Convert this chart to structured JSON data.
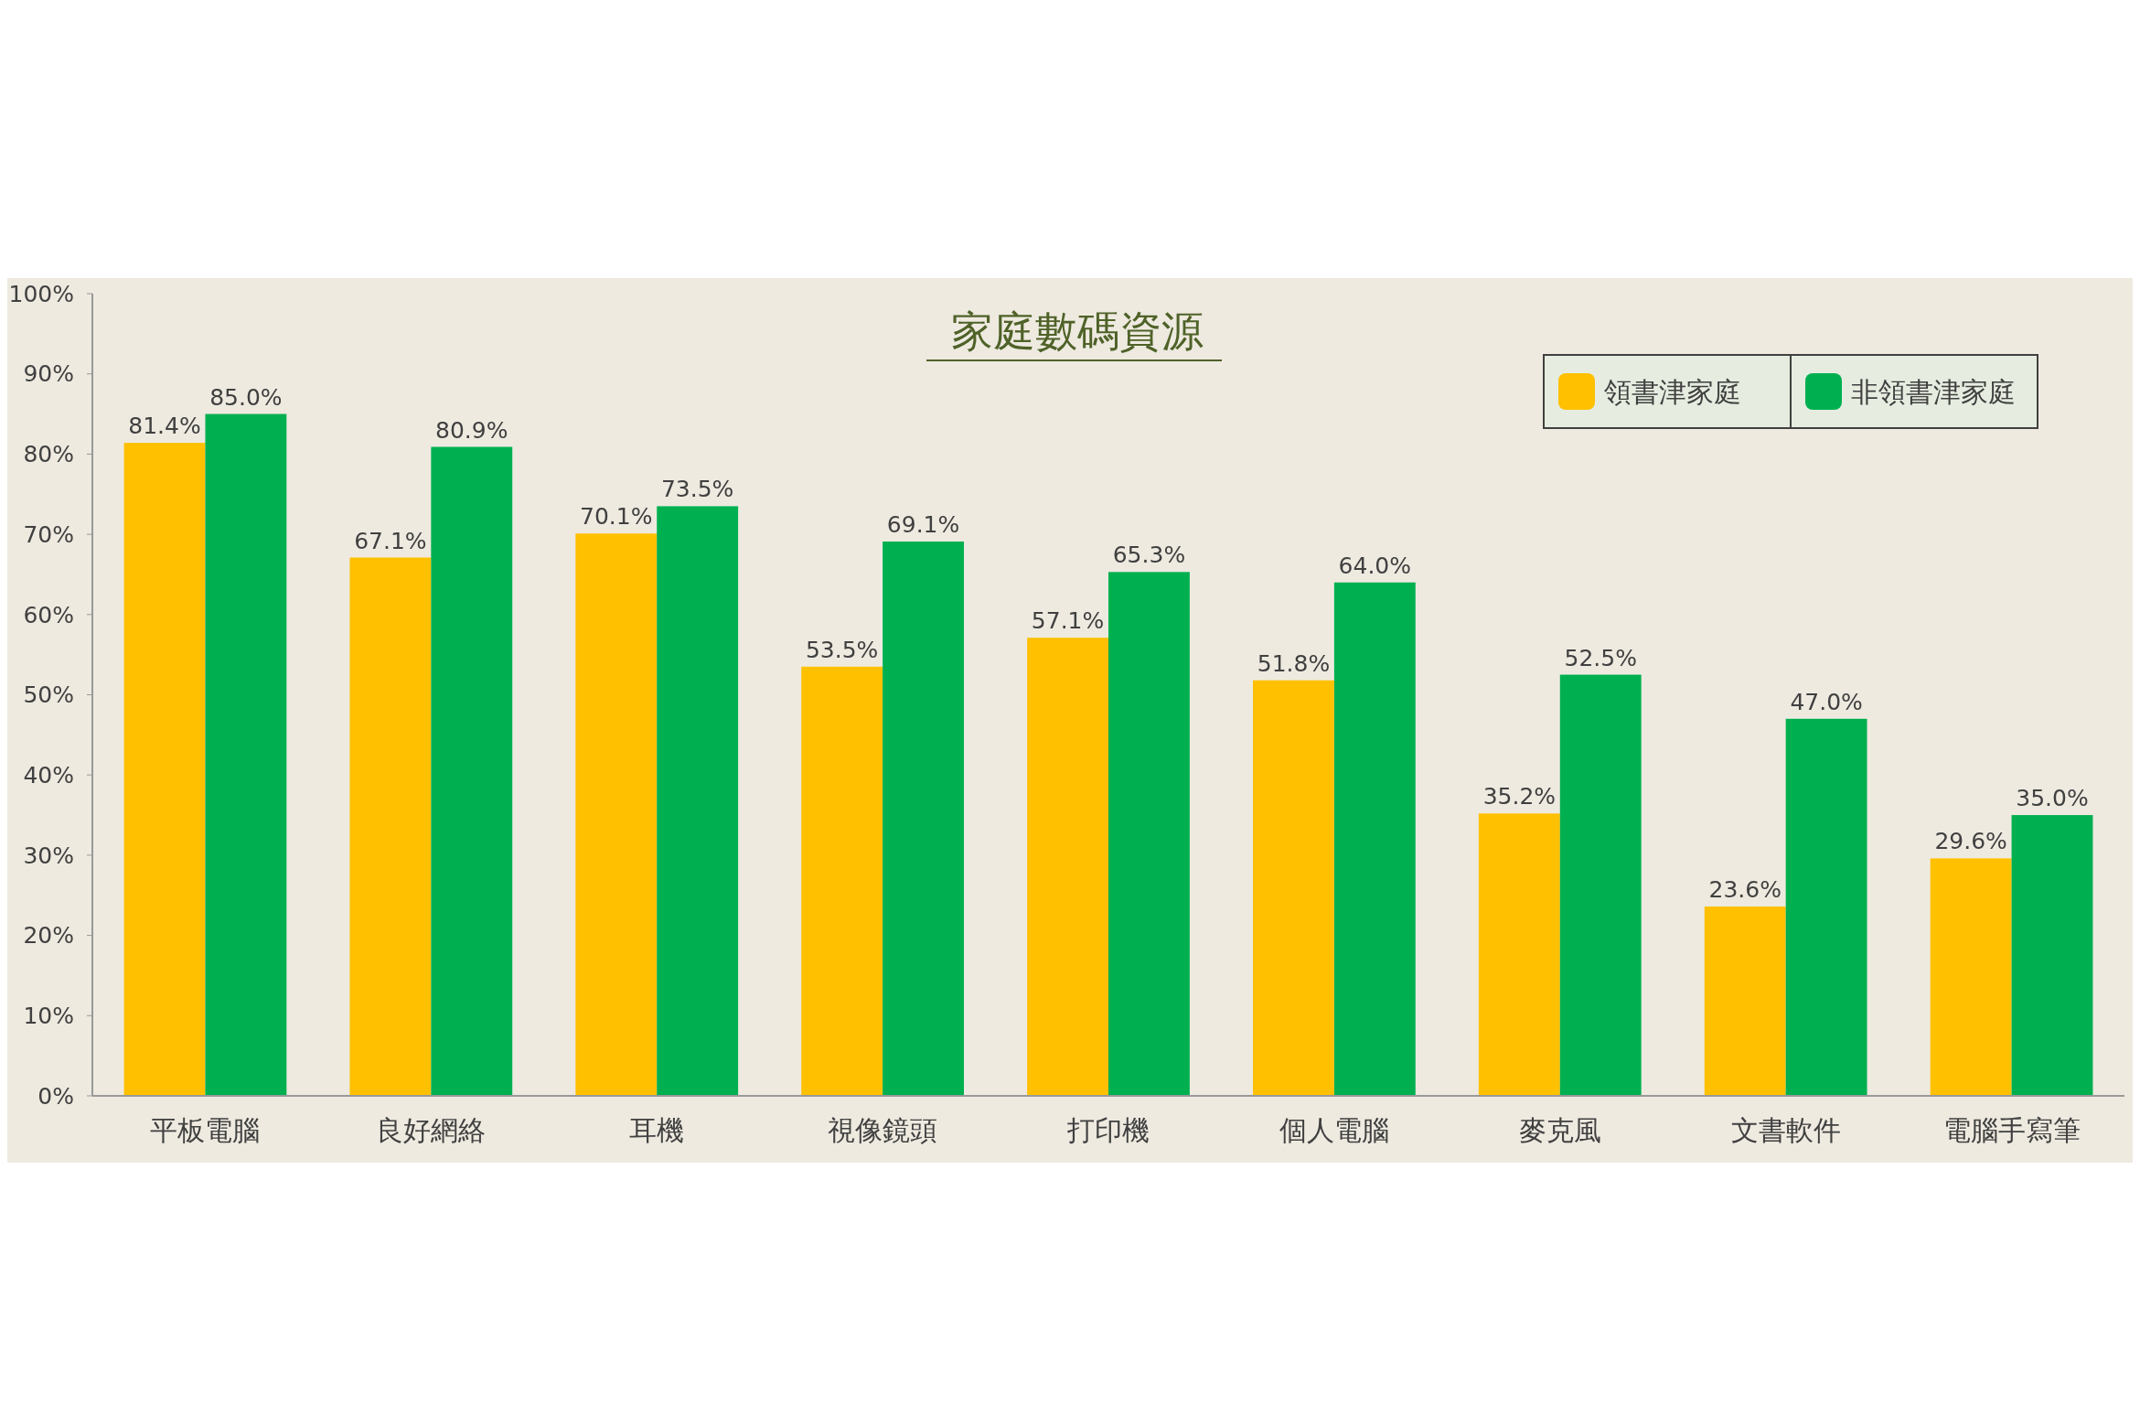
{
  "chart_data": {
    "type": "bar",
    "title": "家庭數碼資源",
    "categories": [
      "平板電腦",
      "良好網絡",
      "耳機",
      "視像鏡頭",
      "打印機",
      "個人電腦",
      "麥克風",
      "文書軟件",
      "電腦手寫筆"
    ],
    "series": [
      {
        "name": "領書津家庭",
        "color": "#ffc000",
        "values": [
          81.4,
          67.1,
          70.1,
          53.5,
          57.1,
          51.8,
          35.2,
          23.6,
          29.6
        ],
        "value_labels": [
          "81.4%",
          "67.1%",
          "70.1%",
          "53.5%",
          "57.1%",
          "51.8%",
          "35.2%",
          "23.6%",
          "29.6%"
        ]
      },
      {
        "name": "非領書津家庭",
        "color": "#00b050",
        "values": [
          85.0,
          80.9,
          73.5,
          69.1,
          65.3,
          64.0,
          52.5,
          47.0,
          35.0
        ],
        "value_labels": [
          "85.0%",
          "80.9%",
          "73.5%",
          "69.1%",
          "65.3%",
          "64.0%",
          "52.5%",
          "47.0%",
          "35.0%"
        ]
      }
    ],
    "ylim": [
      0,
      100
    ],
    "yticks": [
      {
        "value": 0,
        "label": "0%"
      },
      {
        "value": 10,
        "label": "10%"
      },
      {
        "value": 20,
        "label": "20%"
      },
      {
        "value": 30,
        "label": "30%"
      },
      {
        "value": 40,
        "label": "40%"
      },
      {
        "value": 50,
        "label": "50%"
      },
      {
        "value": 60,
        "label": "60%"
      },
      {
        "value": 70,
        "label": "70%"
      },
      {
        "value": 80,
        "label": "80%"
      },
      {
        "value": 90,
        "label": "90%"
      },
      {
        "value": 100,
        "label": "100%"
      }
    ],
    "grid": false,
    "legend": "top right"
  }
}
